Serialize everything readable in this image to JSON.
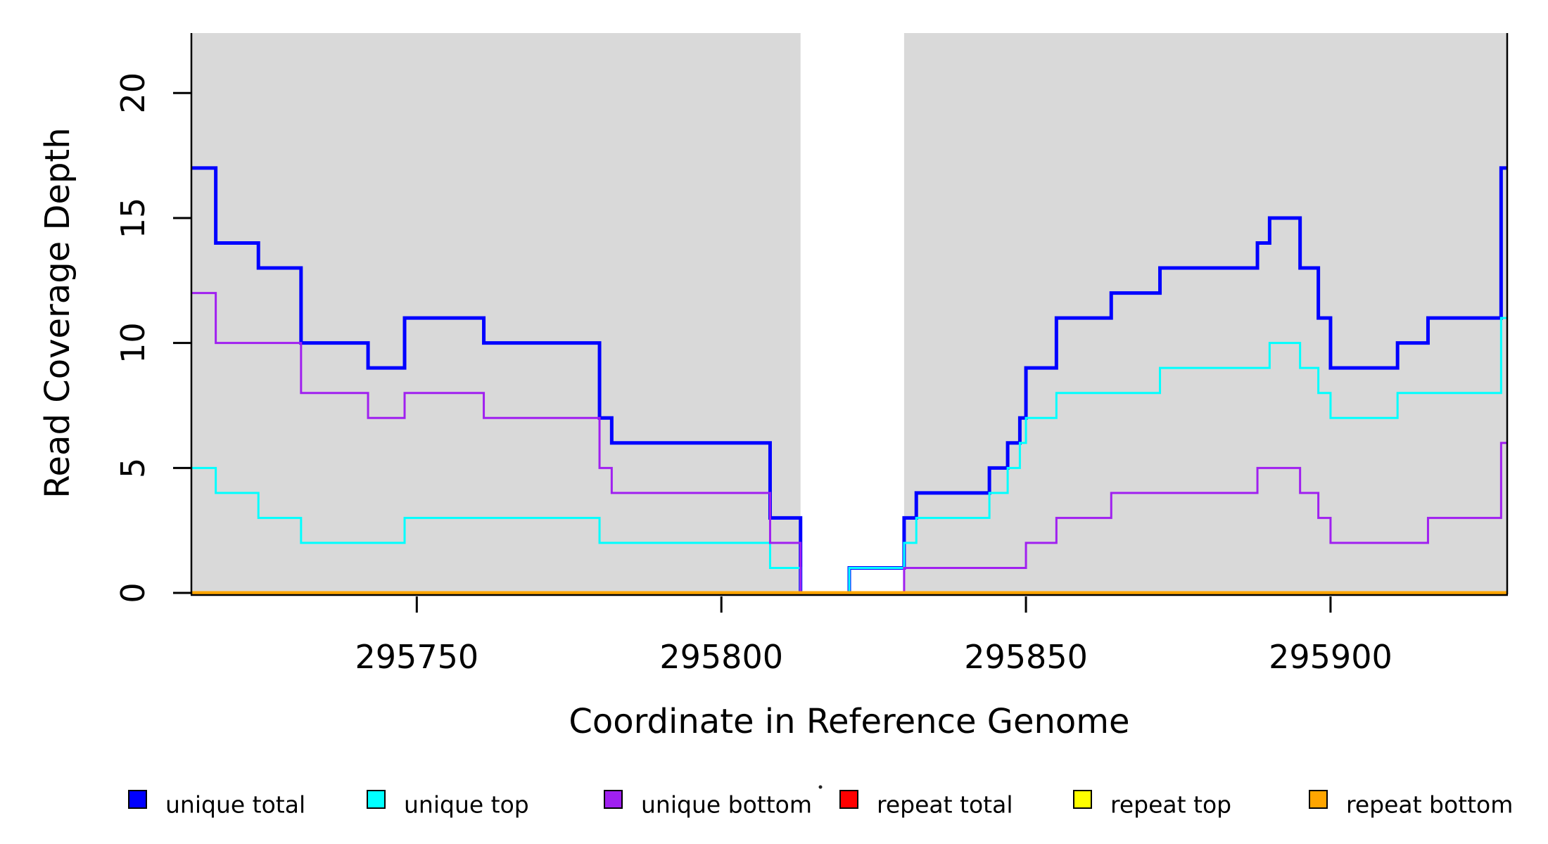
{
  "chart_data": {
    "type": "line",
    "subtype": "step-coverage-plot",
    "title": "",
    "xlabel": "Coordinate in Reference Genome",
    "ylabel": "Read Coverage Depth",
    "xlim": [
      295713,
      295929
    ],
    "ylim": [
      0,
      22.4
    ],
    "x_ticks": [
      295750,
      295800,
      295850,
      295900
    ],
    "y_ticks": [
      0,
      5,
      10,
      15,
      20
    ],
    "grid": false,
    "background": {
      "shade_color": "#D9D9D9",
      "shaded_regions": [
        [
          295713,
          295813
        ],
        [
          295830,
          295929
        ]
      ],
      "gap_region": [
        295813,
        295830
      ]
    },
    "axis_color": "#000000",
    "series": [
      {
        "name": "unique total",
        "color": "#0000FF",
        "linewidth": 5,
        "boundaries": [
          295713,
          295717,
          295724,
          295731,
          295742,
          295748,
          295761,
          295780,
          295782,
          295808,
          295813,
          295821,
          295830,
          295832,
          295844,
          295847,
          295849,
          295850,
          295855,
          295864,
          295872,
          295888,
          295890,
          295895,
          295898,
          295900,
          295911,
          295916,
          295928,
          295929
        ],
        "values": [
          17,
          14,
          13,
          10,
          9,
          11,
          10,
          7,
          6,
          3,
          0,
          1,
          3,
          4,
          5,
          6,
          7,
          9,
          11,
          12,
          13,
          14,
          15,
          13,
          11,
          9,
          10,
          11,
          17
        ]
      },
      {
        "name": "unique top",
        "color": "#00FFFF",
        "linewidth": 3,
        "boundaries": [
          295713,
          295717,
          295724,
          295731,
          295748,
          295780,
          295808,
          295813,
          295821,
          295830,
          295832,
          295844,
          295847,
          295849,
          295850,
          295855,
          295872,
          295890,
          295895,
          295898,
          295900,
          295911,
          295928,
          295929
        ],
        "values": [
          5,
          4,
          3,
          2,
          3,
          2,
          1,
          0,
          1,
          2,
          3,
          4,
          5,
          6,
          7,
          8,
          9,
          10,
          9,
          8,
          7,
          8,
          11
        ]
      },
      {
        "name": "unique bottom",
        "color": "#A020F0",
        "linewidth": 3,
        "boundaries": [
          295713,
          295717,
          295731,
          295742,
          295748,
          295761,
          295780,
          295782,
          295808,
          295813,
          295830,
          295850,
          295855,
          295864,
          295888,
          295895,
          295898,
          295900,
          295916,
          295928,
          295929
        ],
        "values": [
          12,
          10,
          8,
          7,
          8,
          7,
          5,
          4,
          2,
          0,
          1,
          2,
          3,
          4,
          5,
          4,
          3,
          2,
          3,
          6
        ]
      },
      {
        "name": "repeat total",
        "color": "#FF0000",
        "linewidth": 3,
        "boundaries": [
          295713,
          295929
        ],
        "values": [
          0
        ]
      },
      {
        "name": "repeat top",
        "color": "#FFFF00",
        "linewidth": 3,
        "boundaries": [
          295713,
          295929
        ],
        "values": [
          0
        ]
      },
      {
        "name": "repeat bottom",
        "color": "#FFA500",
        "linewidth": 5,
        "boundaries": [
          295713,
          295929
        ],
        "values": [
          0
        ]
      }
    ],
    "legend": {
      "position": "bottom",
      "entries": [
        {
          "label": "unique total",
          "color": "#0000FF"
        },
        {
          "label": "unique top",
          "color": "#00FFFF"
        },
        {
          "label": "unique bottom",
          "color": "#A020F0"
        },
        {
          "label": "repeat total",
          "color": "#FF0000"
        },
        {
          "label": "repeat top",
          "color": "#FFFF00"
        },
        {
          "label": "repeat bottom",
          "color": "#FFA500"
        }
      ]
    }
  }
}
